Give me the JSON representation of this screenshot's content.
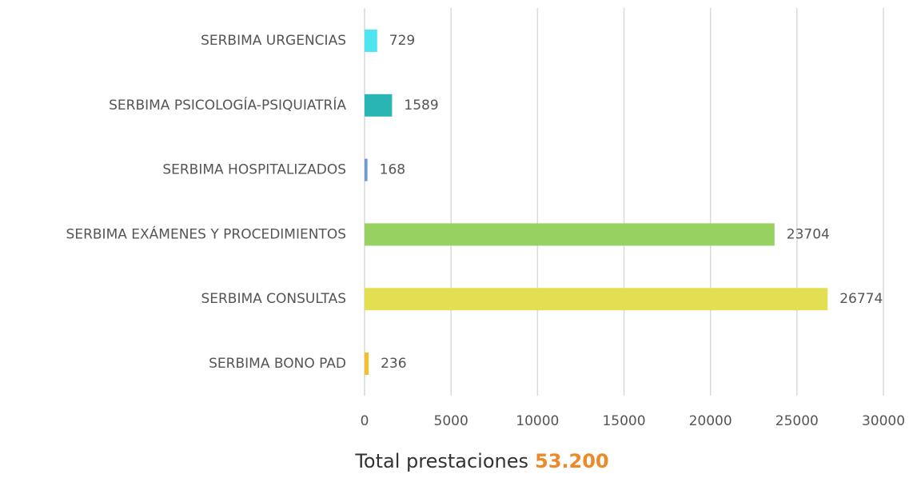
{
  "chart_data": {
    "type": "barh",
    "categories": [
      "SERBIMA URGENCIAS",
      "SERBIMA PSICOLOGÍA-PSIQUIATRÍA",
      "SERBIMA HOSPITALIZADOS",
      "SERBIMA EXÁMENES Y PROCEDIMIENTOS",
      "SERBIMA CONSULTAS",
      "SERBIMA BONO PAD"
    ],
    "values": [
      729,
      1589,
      168,
      23704,
      26774,
      236
    ],
    "colors": [
      "#4de6f0",
      "#2ab5b5",
      "#6a9bd3",
      "#97d162",
      "#e3df52",
      "#f2c02c"
    ],
    "xlim": [
      0,
      30000
    ],
    "xticks": [
      0,
      5000,
      10000,
      15000,
      20000,
      25000,
      30000
    ],
    "grid": true,
    "total": {
      "text": "Total prestaciones",
      "value": 53200,
      "value_label": "53.200",
      "color": "#ec8a2a"
    }
  }
}
